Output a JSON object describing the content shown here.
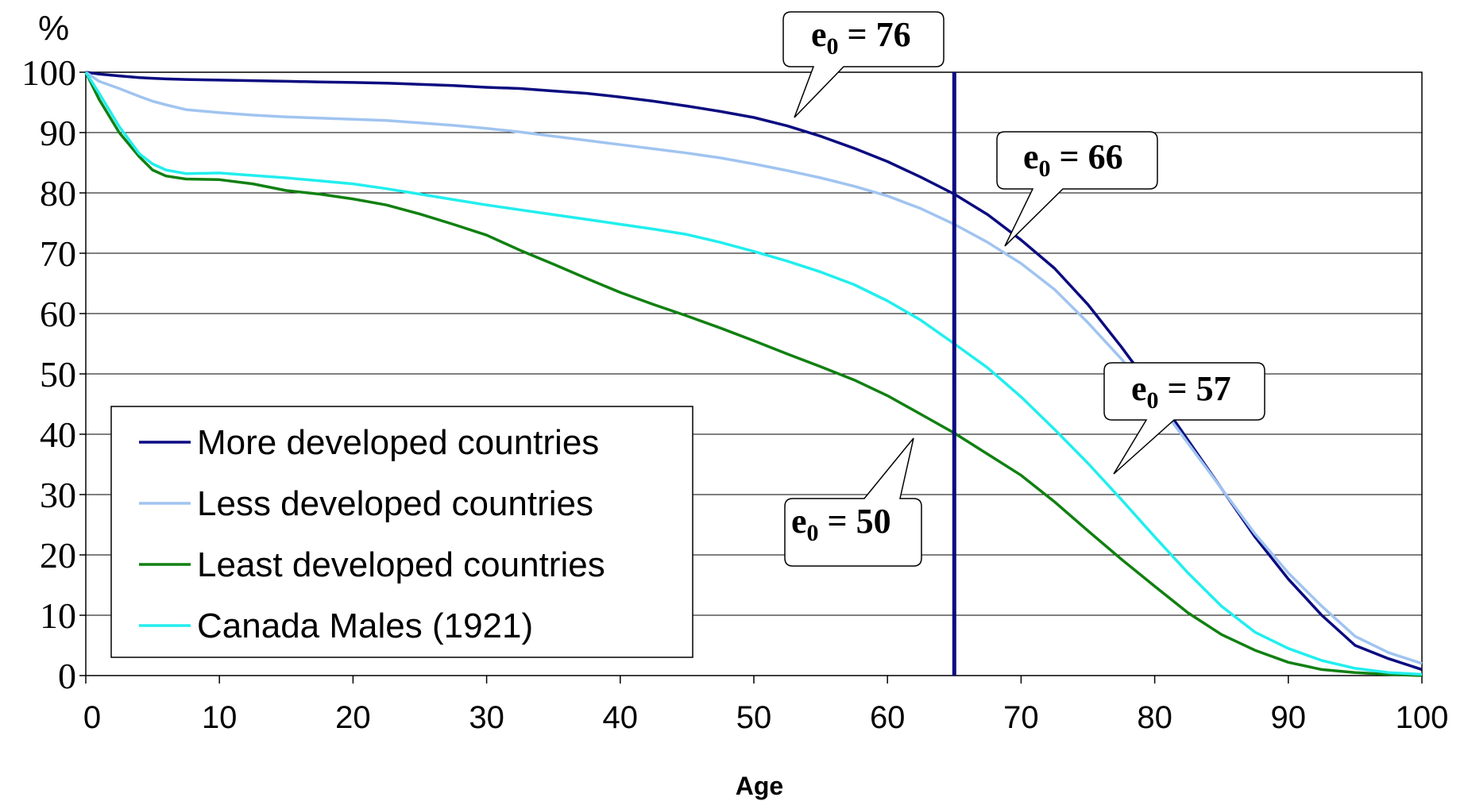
{
  "chart_data": {
    "type": "line",
    "title": "",
    "xlabel": "Age",
    "ylabel": "%",
    "xlim": [
      0,
      100
    ],
    "ylim": [
      0,
      100
    ],
    "x_ticks": [
      0,
      10,
      20,
      30,
      40,
      50,
      60,
      70,
      80,
      90,
      100
    ],
    "y_ticks": [
      0,
      10,
      20,
      30,
      40,
      50,
      60,
      70,
      80,
      90,
      100
    ],
    "grid": "horizontal",
    "legend_position": "bottom-left",
    "x": [
      0,
      1,
      2.5,
      4,
      5,
      6,
      7.5,
      10,
      12.5,
      15,
      17.5,
      20,
      22.5,
      25,
      27.5,
      30,
      32.5,
      35,
      37.5,
      40,
      42.5,
      45,
      47.5,
      50,
      52.5,
      55,
      57.5,
      60,
      62.5,
      65,
      67.5,
      70,
      72.5,
      75,
      77.5,
      80,
      82.5,
      85,
      87.5,
      90,
      92.5,
      95,
      97.5,
      100
    ],
    "series": [
      {
        "name": "More developed countries",
        "color": "#0b0b80",
        "values": [
          100,
          99.7,
          99.4,
          99.1,
          99,
          98.9,
          98.8,
          98.7,
          98.6,
          98.5,
          98.4,
          98.3,
          98.2,
          98.0,
          97.8,
          97.5,
          97.3,
          96.9,
          96.5,
          95.9,
          95.2,
          94.4,
          93.5,
          92.5,
          91.1,
          89.4,
          87.4,
          85.2,
          82.6,
          79.8,
          76.4,
          72.2,
          67.5,
          61.5,
          54.5,
          47,
          39,
          31,
          23,
          16,
          10,
          5,
          2.8,
          1
        ]
      },
      {
        "name": "Less developed countries",
        "color": "#a0c4f0",
        "values": [
          100,
          98.5,
          97.3,
          96,
          95.2,
          94.6,
          93.8,
          93.3,
          92.9,
          92.6,
          92.4,
          92.2,
          92.0,
          91.6,
          91.2,
          90.7,
          90.1,
          89.4,
          88.7,
          88.0,
          87.3,
          86.6,
          85.8,
          84.8,
          83.7,
          82.5,
          81.1,
          79.5,
          77.4,
          74.8,
          71.8,
          68.3,
          64,
          58.5,
          52.5,
          46,
          38.5,
          31,
          23.5,
          17,
          11.5,
          6.5,
          3.8,
          2
        ]
      },
      {
        "name": "Least developed countries",
        "color": "#118011",
        "values": [
          100,
          95.5,
          90,
          86,
          83.8,
          82.8,
          82.3,
          82.2,
          81.5,
          80.4,
          79.8,
          79,
          78,
          76.5,
          74.8,
          73,
          70.5,
          68.2,
          65.8,
          63.5,
          61.5,
          59.6,
          57.6,
          55.5,
          53.3,
          51.2,
          49,
          46.4,
          43.3,
          40.2,
          36.7,
          33.2,
          28.8,
          24,
          19.3,
          14.8,
          10.4,
          6.8,
          4.2,
          2.2,
          1,
          0.5,
          0.2,
          0
        ]
      },
      {
        "name": "Canada Males (1921)",
        "color": "#22eeee",
        "values": [
          100,
          96.5,
          91,
          86.5,
          84.8,
          83.8,
          83.2,
          83.3,
          82.9,
          82.5,
          82,
          81.5,
          80.7,
          79.8,
          78.9,
          78,
          77.2,
          76.4,
          75.6,
          74.8,
          74,
          73.1,
          71.8,
          70.3,
          68.7,
          66.9,
          64.8,
          62.1,
          58.9,
          55,
          51,
          46.2,
          40.8,
          35.2,
          29.2,
          23,
          17,
          11.5,
          7.2,
          4.5,
          2.5,
          1.2,
          0.5,
          0.2
        ]
      }
    ],
    "reference_lines": [
      {
        "axis": "x",
        "value": 65,
        "color": "#0b0b80"
      }
    ],
    "annotations": [
      {
        "label": "e",
        "subscript": "0",
        "suffix": " = 76",
        "target": [
          54.5,
          90
        ]
      },
      {
        "label": "e",
        "subscript": "0",
        "suffix": " = 66",
        "target": [
          69,
          70.5
        ]
      },
      {
        "label": "e",
        "subscript": "0",
        "suffix": " = 57",
        "target": [
          77,
          33.5
        ]
      },
      {
        "label": "e",
        "subscript": "0",
        "suffix": " = 50",
        "target": [
          64.5,
          40.5
        ]
      }
    ]
  }
}
